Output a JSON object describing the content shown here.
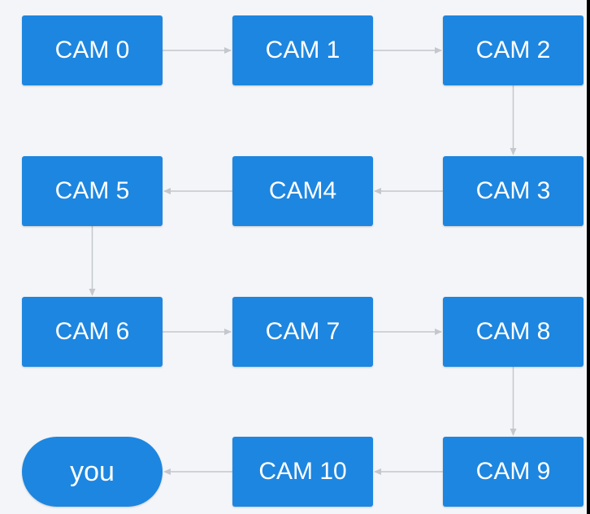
{
  "nodes": [
    {
      "id": "cam0",
      "label": "CAM 0"
    },
    {
      "id": "cam1",
      "label": "CAM 1"
    },
    {
      "id": "cam2",
      "label": "CAM 2"
    },
    {
      "id": "cam3",
      "label": "CAM 3"
    },
    {
      "id": "cam4",
      "label": "CAM4"
    },
    {
      "id": "cam5",
      "label": "CAM 5"
    },
    {
      "id": "cam6",
      "label": "CAM 6"
    },
    {
      "id": "cam7",
      "label": "CAM 7"
    },
    {
      "id": "cam8",
      "label": "CAM 8"
    },
    {
      "id": "cam9",
      "label": "CAM 9"
    },
    {
      "id": "cam10",
      "label": "CAM 10"
    },
    {
      "id": "you",
      "label": "you",
      "shape": "pill"
    }
  ],
  "edges": [
    [
      "cam0",
      "cam1"
    ],
    [
      "cam1",
      "cam2"
    ],
    [
      "cam2",
      "cam3"
    ],
    [
      "cam3",
      "cam4"
    ],
    [
      "cam4",
      "cam5"
    ],
    [
      "cam5",
      "cam6"
    ],
    [
      "cam6",
      "cam7"
    ],
    [
      "cam7",
      "cam8"
    ],
    [
      "cam8",
      "cam9"
    ],
    [
      "cam9",
      "cam10"
    ],
    [
      "cam10",
      "you"
    ]
  ],
  "colors": {
    "node": "#1d86e0",
    "edge": "#c4c7cc",
    "background": "#f3f5f8"
  }
}
